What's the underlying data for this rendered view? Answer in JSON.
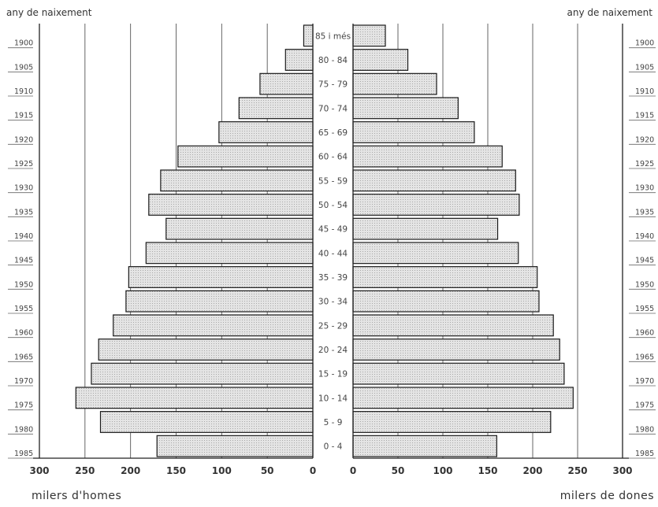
{
  "chart_data": {
    "type": "bar",
    "chart_kind": "population pyramid",
    "corner_label_left": "any de naixement",
    "corner_label_right": "any de naixement",
    "age_groups": [
      "0 - 4",
      "5 - 9",
      "10 - 14",
      "15 - 19",
      "20 - 24",
      "25 - 29",
      "30 - 34",
      "35 - 39",
      "40 - 44",
      "45 - 49",
      "50 - 54",
      "55 - 59",
      "60 - 64",
      "65 - 69",
      "70 - 74",
      "75 - 79",
      "80 - 84",
      "85 i més"
    ],
    "birth_years": [
      "1985",
      "1980",
      "1975",
      "1970",
      "1965",
      "1960",
      "1955",
      "1950",
      "1945",
      "1940",
      "1935",
      "1930",
      "1925",
      "1920",
      "1915",
      "1910",
      "1905",
      "1900"
    ],
    "series": [
      {
        "name": "homes",
        "values": [
          171,
          233,
          260,
          243,
          235,
          219,
          205,
          202,
          183,
          161,
          180,
          167,
          148,
          103,
          81,
          58,
          30,
          10
        ]
      },
      {
        "name": "dones",
        "values": [
          160,
          220,
          245,
          235,
          230,
          223,
          207,
          205,
          184,
          161,
          185,
          181,
          166,
          135,
          117,
          93,
          61,
          36
        ]
      }
    ],
    "x_ticks": [
      "300",
      "250",
      "200",
      "150",
      "100",
      "50",
      "0"
    ],
    "xlim": [
      0,
      300
    ],
    "xlabel_left": "milers d'homes",
    "xlabel_right": "milers de dones",
    "grid": true,
    "bar_fill": "#dcdcdc",
    "bar_stroke": "#1a1a1a"
  }
}
